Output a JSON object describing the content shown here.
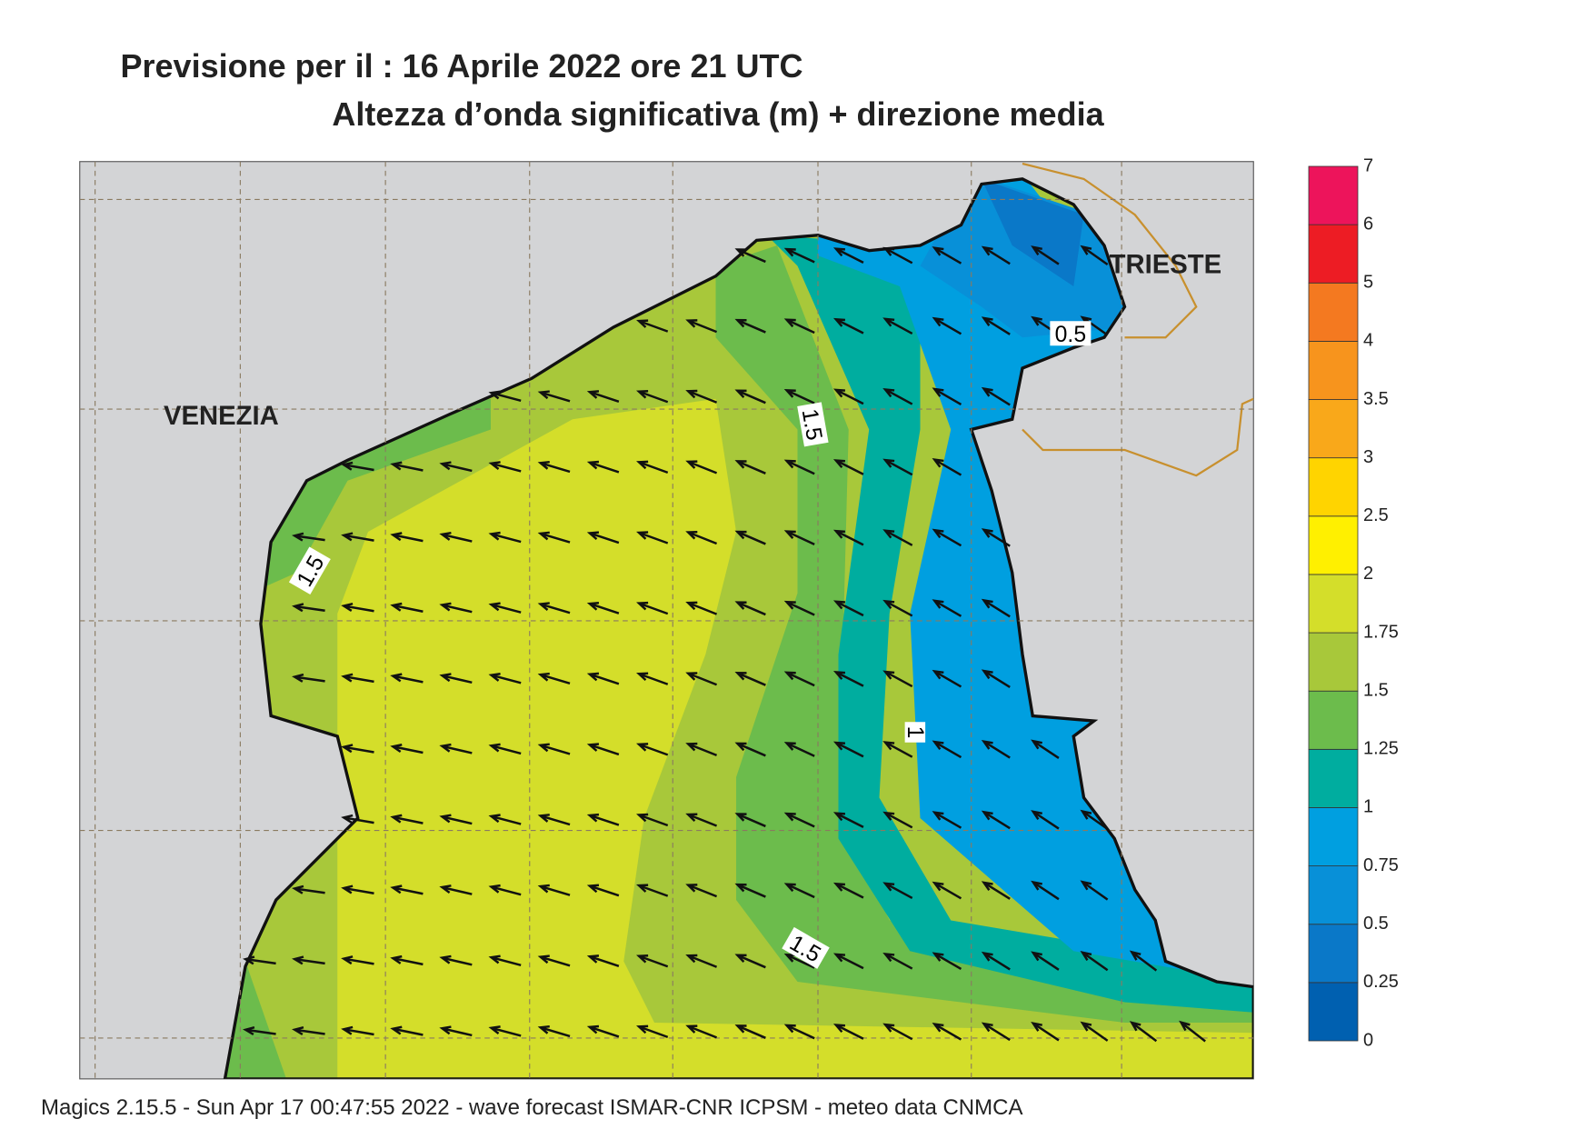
{
  "header": {
    "title_line1": "Previsione per il  :  16   Aprile  2022   ore 21 UTC",
    "title_line2": "Altezza d’onda significativa (m) + direzione media"
  },
  "places": [
    "VENEZIA",
    "TRIESTE"
  ],
  "contour_labels": [
    "0.5",
    "1.5",
    "1.5",
    "1",
    "1.5"
  ],
  "colorbar": {
    "levels": [
      0,
      0.25,
      0.5,
      0.75,
      1,
      1.25,
      1.5,
      1.75,
      2,
      2.5,
      3,
      3.5,
      4,
      5,
      6,
      7
    ],
    "colors": [
      "#0060b0",
      "#0a78c8",
      "#0890d8",
      "#009fe0",
      "#00ad9f",
      "#6cbc4c",
      "#a8c83a",
      "#d4de2a",
      "#fff000",
      "#ffd400",
      "#f9a81a",
      "#f7941d",
      "#f47920",
      "#ed1c24",
      "#ed145b"
    ]
  },
  "footer": "Magics 2.15.5 - Sun Apr 17 00:47:55 2022 - wave forecast  ISMAR-CNR  ICPSM - meteo data   CNMCA"
}
